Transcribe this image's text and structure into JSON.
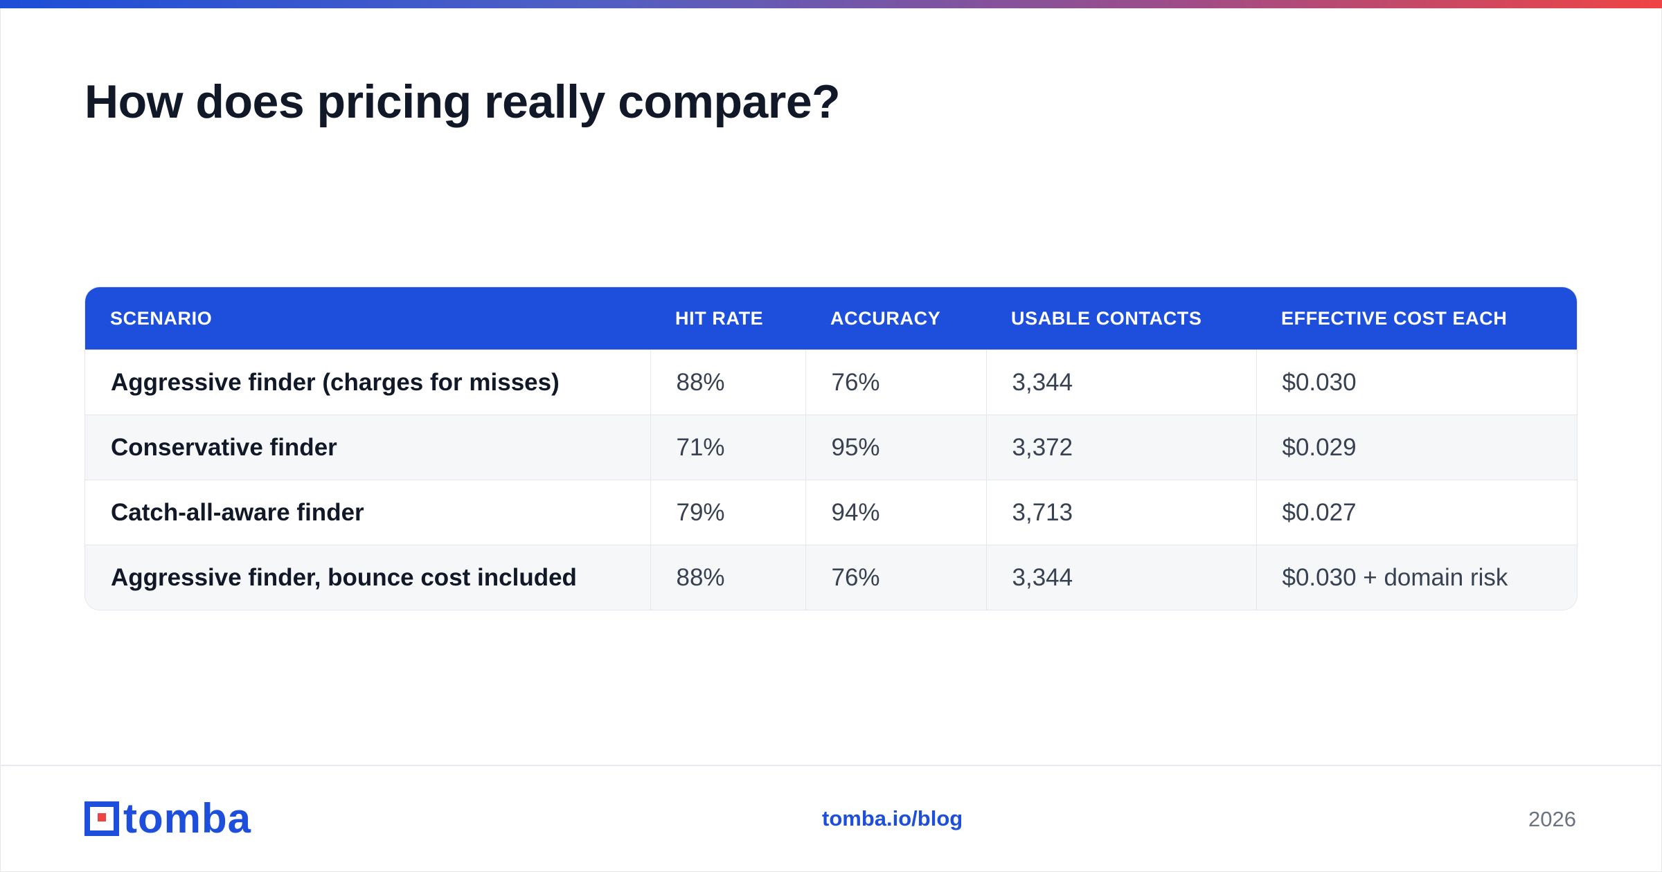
{
  "title": "How does pricing really compare?",
  "table": {
    "headers": [
      "SCENARIO",
      "HIT RATE",
      "ACCURACY",
      "USABLE CONTACTS",
      "EFFECTIVE COST EACH"
    ],
    "rows": [
      [
        "Aggressive finder (charges for misses)",
        "88%",
        "76%",
        "3,344",
        "$0.030"
      ],
      [
        "Conservative finder",
        "71%",
        "95%",
        "3,372",
        "$0.029"
      ],
      [
        "Catch-all-aware finder",
        "79%",
        "94%",
        "3,713",
        "$0.027"
      ],
      [
        "Aggressive finder, bounce cost included",
        "88%",
        "76%",
        "3,344",
        "$0.030 + domain risk"
      ]
    ]
  },
  "footer": {
    "logo_text": "tomba",
    "link": "tomba.io/blog",
    "year": "2026"
  },
  "colors": {
    "brand_blue": "#1d4fdc",
    "accent_red": "#ef4444",
    "title_text": "#111827"
  }
}
